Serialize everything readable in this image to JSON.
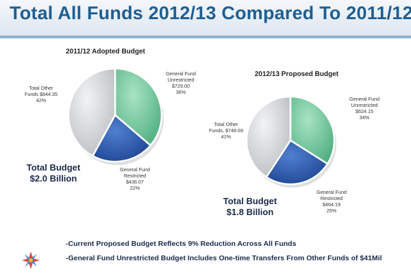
{
  "header": {
    "title": "Total All Funds 2012/13 Compared To 2011/12"
  },
  "chart_data": [
    {
      "type": "pie",
      "title": "2011/12 Adopted Budget",
      "total_lines": [
        "Total Budget",
        "$2.0 Billion"
      ],
      "slices": [
        {
          "lines": [
            "General Fund",
            "Unrestricted",
            "$729.00",
            "36%"
          ],
          "value": 729.0,
          "color": "#6cc49a"
        },
        {
          "lines": [
            "General Fund",
            "Restricted",
            "$436.07",
            "22%"
          ],
          "value": 436.07,
          "color": "#2a58a8"
        },
        {
          "lines": [
            "Total Other",
            "Funds $844.35",
            "42%"
          ],
          "value": 844.35,
          "color": "#d5d7da"
        }
      ]
    },
    {
      "type": "pie",
      "title": "2012/13 Proposed Budget",
      "total_lines": [
        "Total Budget",
        "$1.8 Billion"
      ],
      "slices": [
        {
          "lines": [
            "General Fund",
            "Unrestricted",
            "$624.15",
            "34%"
          ],
          "value": 624.15,
          "color": "#6cc49a"
        },
        {
          "lines": [
            "General Fund",
            "Restricted",
            "$464.19",
            "25%"
          ],
          "value": 464.19,
          "color": "#2a58a8"
        },
        {
          "lines": [
            "Total Other",
            "Funds, $748.69",
            "41%"
          ],
          "value": 748.69,
          "color": "#d5d7da"
        }
      ]
    }
  ],
  "notes": [
    "-Current Proposed Budget Reflects 9% Reduction Across All Funds",
    "-General Fund Unrestricted Budget Includes One-time Transfers From Other Funds of $41Mil"
  ]
}
